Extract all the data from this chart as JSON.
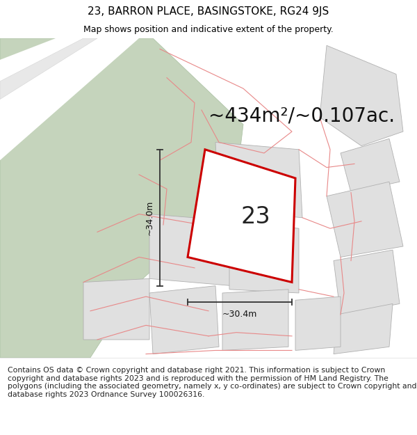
{
  "title": "23, BARRON PLACE, BASINGSTOKE, RG24 9JS",
  "subtitle": "Map shows position and indicative extent of the property.",
  "area_text": "~434m²/~0.107ac.",
  "width_label": "~30.4m",
  "height_label": "~34.0m",
  "property_number": "23",
  "footer_text": "Contains OS data © Crown copyright and database right 2021. This information is subject to Crown copyright and database rights 2023 and is reproduced with the permission of HM Land Registry. The polygons (including the associated geometry, namely x, y co-ordinates) are subject to Crown copyright and database rights 2023 Ordnance Survey 100026316.",
  "map_bg": "#f0eeeb",
  "green_color": "#c5d4bc",
  "white_strip": "#f8f8f8",
  "gray_parcel_fill": "#e0e0e0",
  "gray_parcel_edge": "#b0b0b0",
  "red_line_color": "#e88888",
  "highlight_red": "#cc0000",
  "highlight_fill": "#ffffff",
  "title_fontsize": 11,
  "subtitle_fontsize": 9,
  "area_fontsize": 20,
  "number_fontsize": 24,
  "footer_fontsize": 7.8,
  "measure_fontsize": 9
}
